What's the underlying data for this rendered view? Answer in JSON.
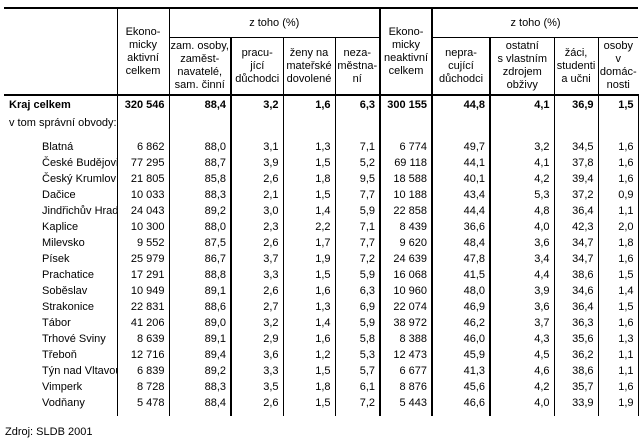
{
  "table": {
    "group_header_left": "z toho (%)",
    "group_header_right": "z toho (%)",
    "columns": {
      "label": "",
      "ea_total": "Ekono-\nmicky\naktivní\ncelkem",
      "zam": "zam. osoby,\nzaměst-\nnavatelé,\nsam. činní",
      "prac": "pracu-\njící\ndůchodci",
      "zeny": "ženy na\nmateřské\ndovolené",
      "nezam": "neza-\nměstna-\nní",
      "en_total": "Ekono-\nmicky\nneaktivní\ncelkem",
      "neprac": "nepra-\ncující\ndůchodci",
      "ostatni": "ostatní\ns vlastním\nzdrojem\nobživy",
      "zaci": "žáci,\nstudenti\na učni",
      "osoby": "osoby\nv domác-\nnosti"
    },
    "rows": [
      {
        "label": "Kraj celkem",
        "bold": true,
        "indent": false,
        "values": [
          "320 546",
          "88,4",
          "3,2",
          "1,6",
          "6,3",
          "300 155",
          "44,8",
          "4,1",
          "36,9",
          "1,5"
        ]
      },
      {
        "label": "v tom správní obvody:",
        "bold": false,
        "indent": false,
        "values": []
      },
      {
        "label": "Blatná",
        "bold": false,
        "indent": true,
        "values": [
          "6 862",
          "88,0",
          "3,1",
          "1,3",
          "7,1",
          "6 774",
          "49,7",
          "3,2",
          "34,5",
          "1,6"
        ]
      },
      {
        "label": "České Budějovice",
        "bold": false,
        "indent": true,
        "values": [
          "77 295",
          "88,7",
          "3,9",
          "1,5",
          "5,2",
          "69 118",
          "44,1",
          "4,1",
          "37,8",
          "1,6"
        ]
      },
      {
        "label": "Český Krumlov",
        "bold": false,
        "indent": true,
        "values": [
          "21 805",
          "85,8",
          "2,6",
          "1,8",
          "9,5",
          "18 588",
          "40,1",
          "4,2",
          "39,4",
          "1,6"
        ]
      },
      {
        "label": "Dačice",
        "bold": false,
        "indent": true,
        "values": [
          "10 033",
          "88,3",
          "2,1",
          "1,5",
          "7,7",
          "10 188",
          "43,4",
          "5,3",
          "37,2",
          "0,9"
        ]
      },
      {
        "label": "Jindřichův Hradec",
        "bold": false,
        "indent": true,
        "values": [
          "24 043",
          "89,2",
          "3,0",
          "1,4",
          "5,9",
          "22 858",
          "44,4",
          "4,8",
          "36,4",
          "1,1"
        ]
      },
      {
        "label": "Kaplice",
        "bold": false,
        "indent": true,
        "values": [
          "10 300",
          "88,0",
          "2,3",
          "2,2",
          "7,1",
          "8 439",
          "36,6",
          "4,0",
          "42,3",
          "2,0"
        ]
      },
      {
        "label": "Milevsko",
        "bold": false,
        "indent": true,
        "values": [
          "9 552",
          "87,5",
          "2,6",
          "1,7",
          "7,7",
          "9 620",
          "48,4",
          "3,6",
          "34,7",
          "1,8"
        ]
      },
      {
        "label": "Písek",
        "bold": false,
        "indent": true,
        "values": [
          "25 979",
          "86,7",
          "3,7",
          "1,9",
          "7,2",
          "24 639",
          "47,8",
          "3,4",
          "34,7",
          "1,6"
        ]
      },
      {
        "label": "Prachatice",
        "bold": false,
        "indent": true,
        "values": [
          "17 291",
          "88,8",
          "3,3",
          "1,5",
          "5,9",
          "16 068",
          "41,5",
          "4,4",
          "38,6",
          "1,5"
        ]
      },
      {
        "label": "Soběslav",
        "bold": false,
        "indent": true,
        "values": [
          "10 949",
          "89,1",
          "2,6",
          "1,6",
          "6,3",
          "10 960",
          "48,0",
          "3,9",
          "34,6",
          "1,4"
        ]
      },
      {
        "label": "Strakonice",
        "bold": false,
        "indent": true,
        "values": [
          "22 831",
          "88,6",
          "2,7",
          "1,3",
          "6,9",
          "22 074",
          "46,9",
          "3,6",
          "36,4",
          "1,5"
        ]
      },
      {
        "label": "Tábor",
        "bold": false,
        "indent": true,
        "values": [
          "41 206",
          "89,0",
          "3,2",
          "1,4",
          "5,9",
          "38 972",
          "46,2",
          "3,7",
          "36,3",
          "1,6"
        ]
      },
      {
        "label": "Trhové Sviny",
        "bold": false,
        "indent": true,
        "values": [
          "8 639",
          "89,1",
          "2,9",
          "1,6",
          "5,8",
          "8 388",
          "46,0",
          "4,3",
          "35,6",
          "1,3"
        ]
      },
      {
        "label": "Třeboň",
        "bold": false,
        "indent": true,
        "values": [
          "12 716",
          "89,4",
          "3,6",
          "1,2",
          "5,3",
          "12 473",
          "45,9",
          "4,5",
          "36,2",
          "1,1"
        ]
      },
      {
        "label": "Týn nad Vltavou",
        "bold": false,
        "indent": true,
        "values": [
          "6 839",
          "89,2",
          "3,3",
          "1,5",
          "5,7",
          "6 677",
          "41,3",
          "4,6",
          "38,6",
          "1,1"
        ]
      },
      {
        "label": "Vimperk",
        "bold": false,
        "indent": true,
        "values": [
          "8 728",
          "88,3",
          "3,5",
          "1,8",
          "6,1",
          "8 876",
          "45,6",
          "4,2",
          "35,7",
          "1,6"
        ]
      },
      {
        "label": "Vodňany",
        "bold": false,
        "indent": true,
        "values": [
          "5 478",
          "88,4",
          "2,6",
          "1,5",
          "7,2",
          "5 443",
          "46,6",
          "4,0",
          "33,9",
          "1,9"
        ]
      }
    ],
    "source": "Zdroj: SLDB 2001"
  }
}
